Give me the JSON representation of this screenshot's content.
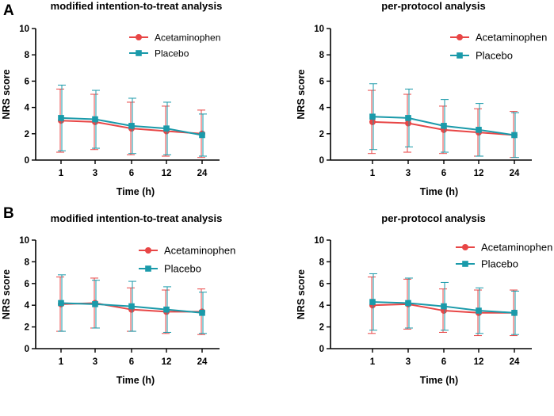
{
  "panel_labels": [
    "A",
    "B"
  ],
  "colors": {
    "acetaminophen": "#e84646",
    "placebo": "#1a9aaa",
    "axis": "#000000"
  },
  "chart_data": [
    {
      "type": "line",
      "panel": "A",
      "title": "modified intention-to-treat analysis",
      "xlabel": "Time (h)",
      "ylabel": "NRS score",
      "categories": [
        "1",
        "3",
        "6",
        "12",
        "24"
      ],
      "ylim": [
        0,
        10
      ],
      "yticks": [
        "0",
        "2",
        "4",
        "6",
        "8",
        "10"
      ],
      "series": [
        {
          "name": "Acetaminophen",
          "marker": "circle",
          "values": [
            3.0,
            2.9,
            2.4,
            2.2,
            2.0
          ],
          "sd_upper": [
            5.4,
            5.0,
            4.4,
            4.1,
            3.8
          ],
          "sd_lower": [
            0.6,
            0.8,
            0.4,
            0.3,
            0.2
          ]
        },
        {
          "name": "Placebo",
          "marker": "square",
          "values": [
            3.2,
            3.1,
            2.6,
            2.4,
            1.9
          ],
          "sd_upper": [
            5.7,
            5.3,
            4.7,
            4.4,
            3.5
          ],
          "sd_lower": [
            0.7,
            0.9,
            0.5,
            0.4,
            0.3
          ]
        }
      ]
    },
    {
      "type": "line",
      "panel": "A",
      "title": "per-protocol analysis",
      "xlabel": "Time (h)",
      "ylabel": "NRS score",
      "categories": [
        "1",
        "3",
        "6",
        "12",
        "24"
      ],
      "ylim": [
        0,
        10
      ],
      "yticks": [
        "0",
        "2",
        "4",
        "6",
        "8",
        "10"
      ],
      "series": [
        {
          "name": "Acetaminophen",
          "marker": "circle",
          "values": [
            2.9,
            2.8,
            2.3,
            2.1,
            1.9
          ],
          "sd_upper": [
            5.3,
            5.0,
            4.1,
            3.9,
            3.7
          ],
          "sd_lower": [
            0.5,
            0.6,
            0.5,
            0.3,
            0.2
          ]
        },
        {
          "name": "Placebo",
          "marker": "square",
          "values": [
            3.3,
            3.2,
            2.6,
            2.3,
            1.9
          ],
          "sd_upper": [
            5.8,
            5.4,
            4.6,
            4.3,
            3.6
          ],
          "sd_lower": [
            0.8,
            1.0,
            0.6,
            0.3,
            0.2
          ]
        }
      ]
    },
    {
      "type": "line",
      "panel": "B",
      "title": "modified intention-to-treat analysis",
      "xlabel": "Time (h)",
      "ylabel": "NRS score",
      "categories": [
        "1",
        "3",
        "6",
        "12",
        "24"
      ],
      "ylim": [
        0,
        10
      ],
      "yticks": [
        "0",
        "2",
        "4",
        "6",
        "8",
        "10"
      ],
      "series": [
        {
          "name": "Acetaminophen",
          "marker": "circle",
          "values": [
            4.1,
            4.2,
            3.6,
            3.4,
            3.4
          ],
          "sd_upper": [
            6.6,
            6.5,
            5.6,
            5.4,
            5.5
          ],
          "sd_lower": [
            1.6,
            1.9,
            1.6,
            1.4,
            1.3
          ]
        },
        {
          "name": "Placebo",
          "marker": "square",
          "values": [
            4.2,
            4.1,
            3.9,
            3.6,
            3.3
          ],
          "sd_upper": [
            6.8,
            6.3,
            6.2,
            5.7,
            5.2
          ],
          "sd_lower": [
            1.6,
            1.9,
            1.6,
            1.5,
            1.4
          ]
        }
      ]
    },
    {
      "type": "line",
      "panel": "B",
      "title": "per-protocol analysis",
      "xlabel": "Time (h)",
      "ylabel": "NRS score",
      "categories": [
        "1",
        "3",
        "6",
        "12",
        "24"
      ],
      "ylim": [
        0,
        10
      ],
      "yticks": [
        "0",
        "2",
        "4",
        "6",
        "8",
        "10"
      ],
      "series": [
        {
          "name": "Acetaminophen",
          "marker": "circle",
          "values": [
            4.0,
            4.1,
            3.5,
            3.3,
            3.3
          ],
          "sd_upper": [
            6.6,
            6.4,
            5.5,
            5.4,
            5.4
          ],
          "sd_lower": [
            1.4,
            1.8,
            1.5,
            1.2,
            1.2
          ]
        },
        {
          "name": "Placebo",
          "marker": "square",
          "values": [
            4.3,
            4.2,
            3.9,
            3.5,
            3.3
          ],
          "sd_upper": [
            6.9,
            6.5,
            6.1,
            5.6,
            5.3
          ],
          "sd_lower": [
            1.7,
            1.9,
            1.7,
            1.4,
            1.3
          ]
        }
      ]
    }
  ]
}
